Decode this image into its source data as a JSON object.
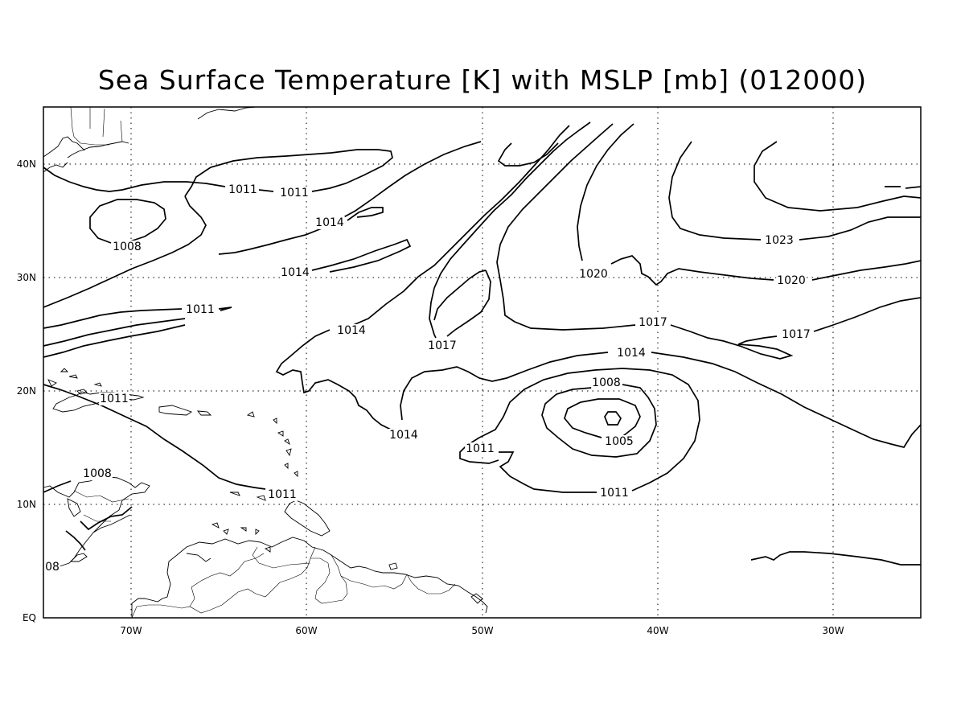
{
  "title": "Sea Surface Temperature [K] with MSLP [mb] (012000)",
  "axes": {
    "x_ticks": [
      "70W",
      "60W",
      "50W",
      "40W",
      "30W"
    ],
    "y_ticks": [
      "EQ",
      "10N",
      "20N",
      "30N",
      "40N"
    ]
  },
  "contour_labels": [
    {
      "id": "a",
      "text": "1011"
    },
    {
      "id": "b",
      "text": "1011"
    },
    {
      "id": "c",
      "text": "1014"
    },
    {
      "id": "d",
      "text": "1008"
    },
    {
      "id": "e",
      "text": "1014"
    },
    {
      "id": "f",
      "text": "1011"
    },
    {
      "id": "g",
      "text": "1014"
    },
    {
      "id": "h",
      "text": "1017"
    },
    {
      "id": "i",
      "text": "1020"
    },
    {
      "id": "j",
      "text": "1023"
    },
    {
      "id": "k",
      "text": "1020"
    },
    {
      "id": "l",
      "text": "1017"
    },
    {
      "id": "m",
      "text": "1017"
    },
    {
      "id": "n",
      "text": "1014"
    },
    {
      "id": "o",
      "text": "1011"
    },
    {
      "id": "p",
      "text": "1008"
    },
    {
      "id": "q",
      "text": "1014"
    },
    {
      "id": "r",
      "text": "1011"
    },
    {
      "id": "s",
      "text": "1005"
    },
    {
      "id": "t",
      "text": "1011"
    },
    {
      "id": "u",
      "text": "1008"
    },
    {
      "id": "v",
      "text": "1011"
    },
    {
      "id": "w",
      "text": "08"
    }
  ]
}
